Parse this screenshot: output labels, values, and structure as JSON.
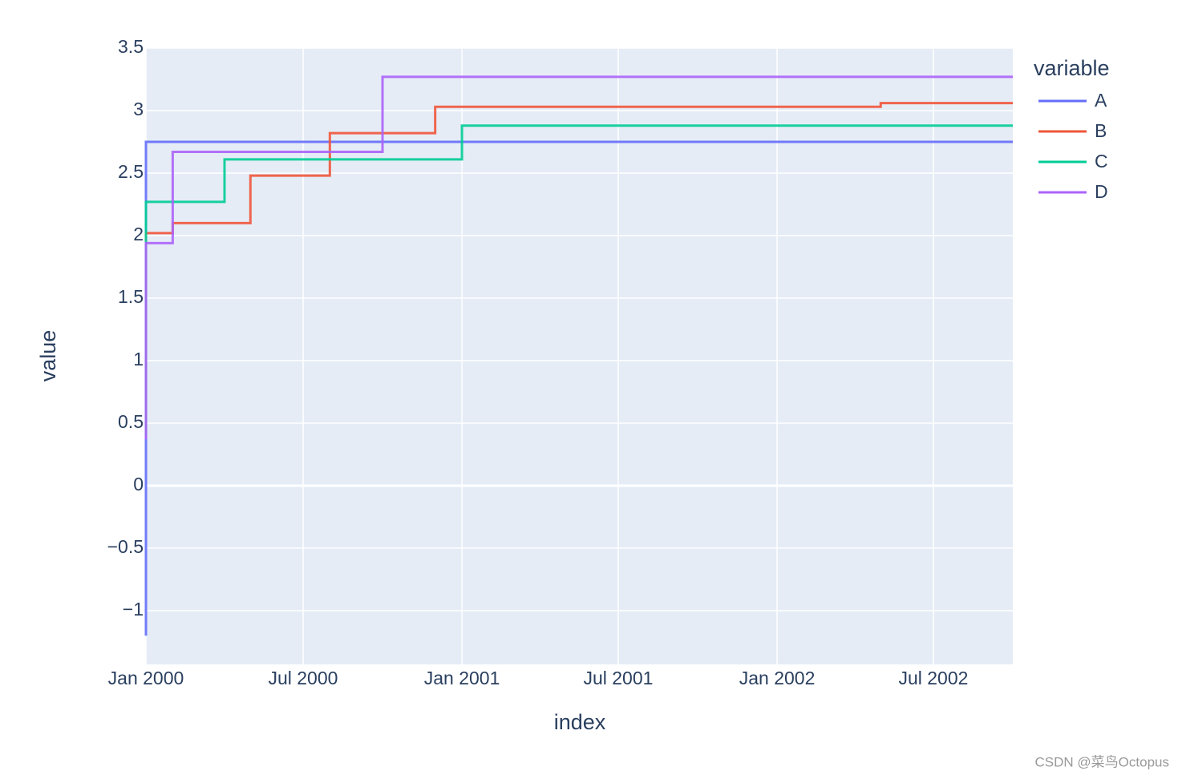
{
  "chart_data": {
    "type": "line",
    "line_shape": "hv",
    "x_label": "index",
    "y_label": "value",
    "legend_title": "variable",
    "xlim": [
      "2000-01",
      "2002-10"
    ],
    "xticks": [
      {
        "value": "2000-01",
        "label": "Jan 2000"
      },
      {
        "value": "2000-07",
        "label": "Jul 2000"
      },
      {
        "value": "2001-01",
        "label": "Jan 2001"
      },
      {
        "value": "2001-07",
        "label": "Jul 2001"
      },
      {
        "value": "2002-01",
        "label": "Jan 2002"
      },
      {
        "value": "2002-07",
        "label": "Jul 2002"
      }
    ],
    "ylim": [
      -1.43,
      3.5
    ],
    "yticks": [
      {
        "value": -1,
        "label": "−1"
      },
      {
        "value": -0.5,
        "label": "−0.5"
      },
      0,
      0.5,
      1,
      1.5,
      2,
      2.5,
      3,
      3.5
    ],
    "grid": true,
    "series": [
      {
        "name": "A",
        "color": "#636efa",
        "x": [
          "2000-01",
          "2000-01",
          "2002-10"
        ],
        "values": [
          -1.2,
          2.75,
          2.75
        ]
      },
      {
        "name": "B",
        "color": "#ef553b",
        "x": [
          "2000-01",
          "2000-01",
          "2000-02",
          "2000-05",
          "2000-08",
          "2000-12",
          "2002-05",
          "2002-10"
        ],
        "values": [
          0.4,
          2.02,
          2.1,
          2.48,
          2.82,
          3.03,
          3.06,
          3.06
        ]
      },
      {
        "name": "C",
        "color": "#00cc96",
        "x": [
          "2000-01",
          "2000-01",
          "2000-04",
          "2001-01",
          "2002-10"
        ],
        "values": [
          0.4,
          2.27,
          2.61,
          2.88,
          2.88
        ]
      },
      {
        "name": "D",
        "color": "#ab63fa",
        "x": [
          "2000-01",
          "2000-01",
          "2000-02",
          "2000-10",
          "2002-10"
        ],
        "values": [
          0.37,
          1.94,
          2.67,
          3.27,
          3.27
        ]
      }
    ]
  },
  "watermark": "CSDN @菜鸟Octopus"
}
